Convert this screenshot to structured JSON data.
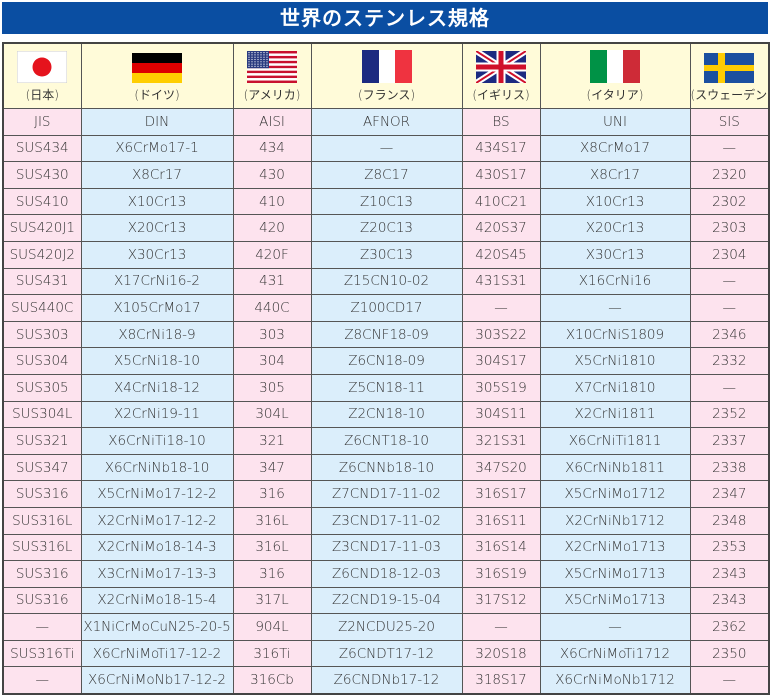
{
  "title": "世界のステンレス規格",
  "countries": [
    {
      "flag": "japan-flag",
      "label": "(日本)",
      "standard": "JIS"
    },
    {
      "flag": "germany-flag",
      "label": "(ドイツ)",
      "standard": "DIN"
    },
    {
      "flag": "usa-flag",
      "label": "(アメリカ)",
      "standard": "AISI"
    },
    {
      "flag": "france-flag",
      "label": "(フランス)",
      "standard": "AFNOR"
    },
    {
      "flag": "uk-flag",
      "label": "(イギリス)",
      "standard": "BS"
    },
    {
      "flag": "italy-flag",
      "label": "(イタリア)",
      "standard": "UNI"
    },
    {
      "flag": "sweden-flag",
      "label": "(スウェーデン)",
      "standard": "SIS"
    }
  ],
  "colors": {
    "title_bg": "#0a4ea2",
    "pink": "#fde3ee",
    "blue": "#dbeefb",
    "flag_row": "#fffbd9"
  },
  "rows": [
    [
      "SUS434",
      "X6CrMo17-1",
      "434",
      "—",
      "434S17",
      "X8CrMo17",
      "—"
    ],
    [
      "SUS430",
      "X8Cr17",
      "430",
      "Z8C17",
      "430S17",
      "X8Cr17",
      "2320"
    ],
    [
      "SUS410",
      "X10Cr13",
      "410",
      "Z10C13",
      "410C21",
      "X10Cr13",
      "2302"
    ],
    [
      "SUS420J1",
      "X20Cr13",
      "420",
      "Z20C13",
      "420S37",
      "X20Cr13",
      "2303"
    ],
    [
      "SUS420J2",
      "X30Cr13",
      "420F",
      "Z30C13",
      "420S45",
      "X30Cr13",
      "2304"
    ],
    [
      "SUS431",
      "X17CrNi16-2",
      "431",
      "Z15CN10-02",
      "431S31",
      "X16CrNi16",
      "—"
    ],
    [
      "SUS440C",
      "X105CrMo17",
      "440C",
      "Z100CD17",
      "—",
      "—",
      "—"
    ],
    [
      "SUS303",
      "X8CrNi18-9",
      "303",
      "Z8CNF18-09",
      "303S22",
      "X10CrNiS1809",
      "2346"
    ],
    [
      "SUS304",
      "X5CrNi18-10",
      "304",
      "Z6CN18-09",
      "304S17",
      "X5CrNi1810",
      "2332"
    ],
    [
      "SUS305",
      "X4CrNi18-12",
      "305",
      "Z5CN18-11",
      "305S19",
      "X7CrNi1810",
      "—"
    ],
    [
      "SUS304L",
      "X2CrNi19-11",
      "304L",
      "Z2CN18-10",
      "304S11",
      "X2CrNi1811",
      "2352"
    ],
    [
      "SUS321",
      "X6CrNiTi18-10",
      "321",
      "Z6CNT18-10",
      "321S31",
      "X6CrNiTi1811",
      "2337"
    ],
    [
      "SUS347",
      "X6CrNiNb18-10",
      "347",
      "Z6CNNb18-10",
      "347S20",
      "X6CrNiNb1811",
      "2338"
    ],
    [
      "SUS316",
      "X5CrNiMo17-12-2",
      "316",
      "Z7CND17-11-02",
      "316S17",
      "X5CrNiMo1712",
      "2347"
    ],
    [
      "SUS316L",
      "X2CrNiMo17-12-2",
      "316L",
      "Z3CND17-11-02",
      "316S11",
      "X2CrNiNb1712",
      "2348"
    ],
    [
      "SUS316L",
      "X2CrNiMo18-14-3",
      "316L",
      "Z3CND17-11-03",
      "316S14",
      "X2CrNiMo1713",
      "2353"
    ],
    [
      "SUS316",
      "X3CrNiMo17-13-3",
      "316",
      "Z6CND18-12-03",
      "316S19",
      "X5CrNiMo1713",
      "2343"
    ],
    [
      "SUS316",
      "X2CrNiMo18-15-4",
      "317L",
      "Z2CND19-15-04",
      "317S12",
      "X5CrNiMo1713",
      "2343"
    ],
    [
      "—",
      "X1NiCrMoCuN25-20-5",
      "904L",
      "Z2NCDU25-20",
      "—",
      "—",
      "2362"
    ],
    [
      "SUS316Ti",
      "X6CrNiMoTi17-12-2",
      "316Ti",
      "Z6CNDT17-12",
      "320S18",
      "X6CrNiMoTi1712",
      "2350"
    ],
    [
      "—",
      "X6CrNiMoNb17-12-2",
      "316Cb",
      "Z6CNDNb17-12",
      "318S17",
      "X6CrNiMoNb1712",
      "—"
    ]
  ]
}
